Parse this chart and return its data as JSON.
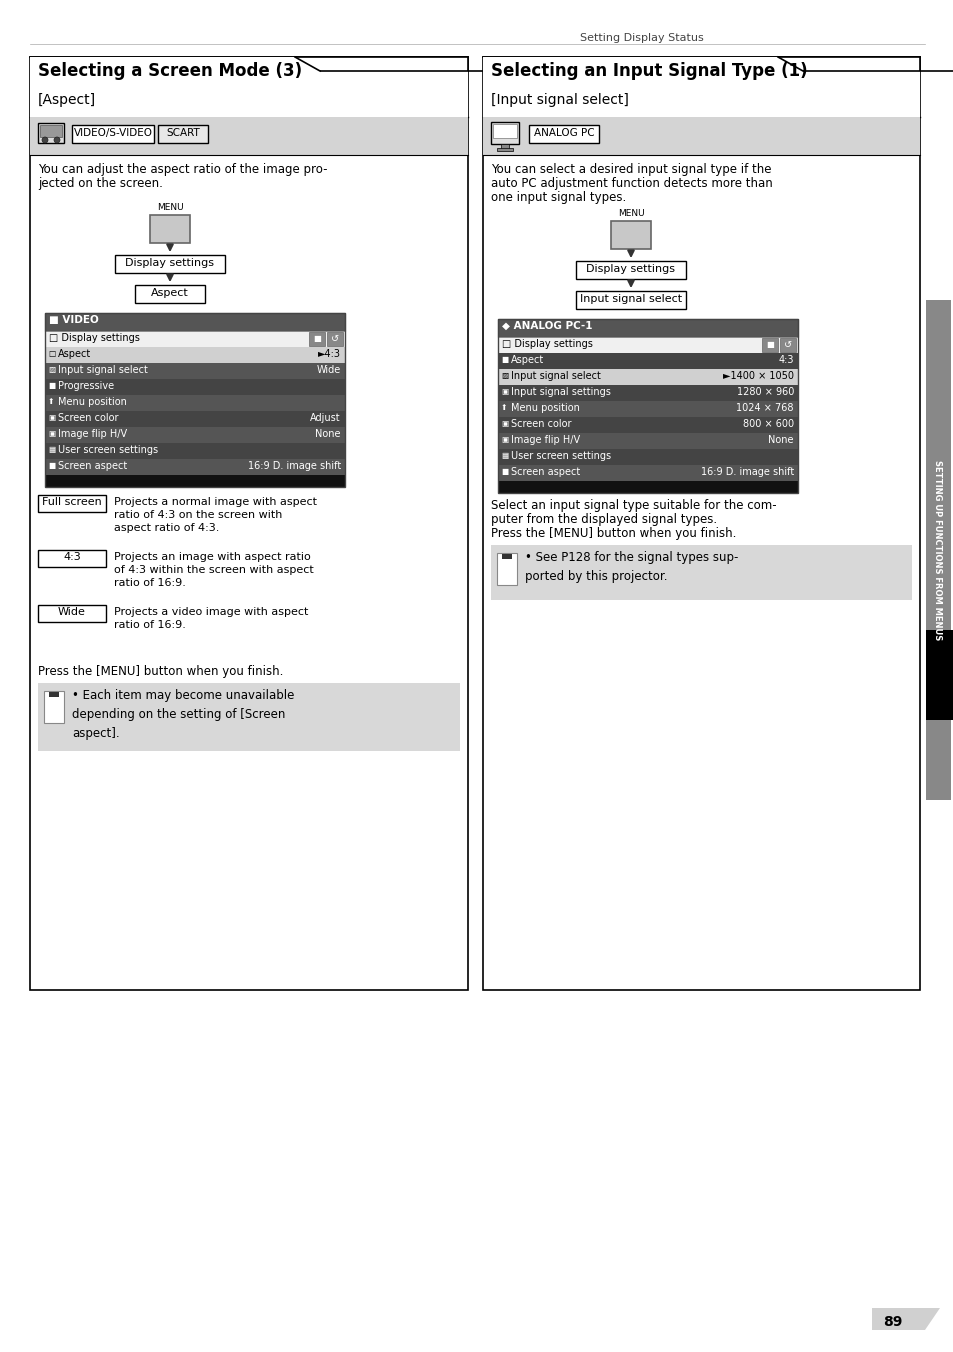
{
  "page_bg": "#ffffff",
  "header_text": "Setting Display Status",
  "page_number": "89",
  "sidebar_text": "SETTING UP FUNCTIONS FROM MENUS",
  "left_panel": {
    "title": "Selecting a Screen Mode (3)",
    "subtitle": "[Aspect]",
    "desc_line1": "You can adjust the aspect ratio of the image pro-",
    "desc_line2": "jected on the screen.",
    "screen_menu_title": "■ VIDEO",
    "screen_menu_rows": [
      {
        "label": "Aspect",
        "value": "►4:3",
        "highlighted": true
      },
      {
        "label": "Input signal select",
        "value": "Wide",
        "highlighted": false
      },
      {
        "label": "Progressive",
        "value": "",
        "highlighted": false
      },
      {
        "label": "Menu position",
        "value": "",
        "highlighted": false
      },
      {
        "label": "Screen color",
        "value": "Adjust",
        "highlighted": false
      },
      {
        "label": "Image flip H/V",
        "value": "None",
        "highlighted": false
      },
      {
        "label": "User screen settings",
        "value": "",
        "highlighted": false
      },
      {
        "label": "Screen aspect",
        "value": "16:9 D. image shift",
        "highlighted": false
      }
    ],
    "button_rows": [
      {
        "btn": "Full screen",
        "desc": "Projects a normal image with aspect\nratio of 4:3 on the screen with\naspect ratio of 4:3."
      },
      {
        "btn": "4:3",
        "desc": "Projects an image with aspect ratio\nof 4:3 within the screen with aspect\nratio of 16:9."
      },
      {
        "btn": "Wide",
        "desc": "Projects a video image with aspect\nratio of 16:9."
      }
    ],
    "footer": "Press the [MENU] button when you finish.",
    "note_text": "Each item may become unavailable\ndepending on the setting of [Screen\naspect]."
  },
  "right_panel": {
    "title": "Selecting an Input Signal Type (1)",
    "subtitle": "[Input signal select]",
    "desc_line1": "You can select a desired input signal type if the",
    "desc_line2": "auto PC adjustment function detects more than",
    "desc_line3": "one input signal types.",
    "screen_menu_title": "◆ ANALOG PC-1",
    "screen_menu_rows": [
      {
        "label": "Aspect",
        "value": "4:3",
        "highlighted": false
      },
      {
        "label": "Input signal select",
        "value": "►1400 × 1050",
        "highlighted": true
      },
      {
        "label": "Input signal settings",
        "value": "1280 × 960",
        "highlighted": false
      },
      {
        "label": "Menu position",
        "value": "1024 × 768",
        "highlighted": false
      },
      {
        "label": "Screen color",
        "value": "800 × 600",
        "highlighted": false
      },
      {
        "label": "Image flip H/V",
        "value": "None",
        "highlighted": false
      },
      {
        "label": "User screen settings",
        "value": "",
        "highlighted": false
      },
      {
        "label": "Screen aspect",
        "value": "16:9 D. image shift",
        "highlighted": false
      }
    ],
    "footer_line1": "Select an input signal type suitable for the com-",
    "footer_line2": "puter from the displayed signal types.",
    "footer_line3": "Press the [MENU] button when you finish.",
    "note_text": "See P128 for the signal types sup-\nported by this projector."
  }
}
